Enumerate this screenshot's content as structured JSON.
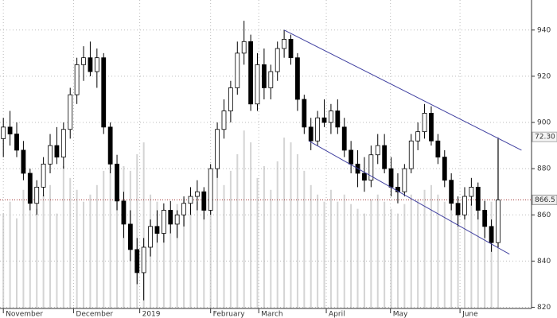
{
  "chart_data": {
    "type": "candlestick",
    "ohlc": [
      [
        893,
        902,
        885,
        898
      ],
      [
        898,
        905,
        890,
        895
      ],
      [
        895,
        900,
        885,
        888
      ],
      [
        888,
        892,
        875,
        878
      ],
      [
        878,
        880,
        862,
        865
      ],
      [
        865,
        875,
        860,
        872
      ],
      [
        872,
        885,
        868,
        882
      ],
      [
        882,
        895,
        878,
        890
      ],
      [
        890,
        898,
        882,
        885
      ],
      [
        885,
        900,
        880,
        897
      ],
      [
        897,
        915,
        893,
        912
      ],
      [
        912,
        928,
        908,
        925
      ],
      [
        925,
        933,
        918,
        928
      ],
      [
        928,
        935,
        920,
        922
      ],
      [
        922,
        932,
        915,
        928
      ],
      [
        928,
        930,
        895,
        898
      ],
      [
        898,
        900,
        878,
        882
      ],
      [
        882,
        886,
        862,
        866
      ],
      [
        866,
        870,
        850,
        856
      ],
      [
        856,
        862,
        840,
        845
      ],
      [
        845,
        850,
        830,
        835
      ],
      [
        835,
        850,
        823,
        846
      ],
      [
        846,
        858,
        842,
        855
      ],
      [
        855,
        862,
        848,
        852
      ],
      [
        852,
        865,
        848,
        862
      ],
      [
        862,
        866,
        852,
        856
      ],
      [
        856,
        862,
        850,
        860
      ],
      [
        860,
        868,
        855,
        865
      ],
      [
        865,
        872,
        860,
        868
      ],
      [
        868,
        875,
        862,
        870
      ],
      [
        870,
        872,
        858,
        862
      ],
      [
        862,
        882,
        860,
        880
      ],
      [
        880,
        900,
        876,
        897
      ],
      [
        897,
        910,
        893,
        905
      ],
      [
        905,
        918,
        900,
        915
      ],
      [
        915,
        935,
        912,
        930
      ],
      [
        930,
        944,
        925,
        935
      ],
      [
        935,
        938,
        905,
        908
      ],
      [
        908,
        930,
        905,
        925
      ],
      [
        925,
        932,
        910,
        915
      ],
      [
        915,
        925,
        910,
        922
      ],
      [
        922,
        935,
        918,
        932
      ],
      [
        932,
        940,
        928,
        936
      ],
      [
        936,
        938,
        925,
        928
      ],
      [
        928,
        930,
        905,
        910
      ],
      [
        910,
        912,
        895,
        898
      ],
      [
        898,
        902,
        888,
        892
      ],
      [
        892,
        905,
        890,
        902
      ],
      [
        902,
        910,
        898,
        900
      ],
      [
        900,
        908,
        895,
        905
      ],
      [
        905,
        910,
        895,
        898
      ],
      [
        898,
        902,
        885,
        888
      ],
      [
        888,
        892,
        878,
        882
      ],
      [
        882,
        888,
        872,
        878
      ],
      [
        878,
        885,
        870,
        875
      ],
      [
        875,
        890,
        872,
        886
      ],
      [
        886,
        895,
        882,
        890
      ],
      [
        890,
        895,
        878,
        880
      ],
      [
        880,
        885,
        868,
        872
      ],
      [
        872,
        878,
        865,
        870
      ],
      [
        870,
        882,
        868,
        880
      ],
      [
        880,
        895,
        878,
        892
      ],
      [
        892,
        900,
        888,
        896
      ],
      [
        896,
        908,
        893,
        904
      ],
      [
        904,
        907,
        890,
        892
      ],
      [
        892,
        895,
        882,
        885
      ],
      [
        885,
        888,
        872,
        875
      ],
      [
        875,
        878,
        862,
        865
      ],
      [
        865,
        868,
        855,
        860
      ],
      [
        860,
        872,
        858,
        868
      ],
      [
        868,
        876,
        864,
        872
      ],
      [
        872,
        874,
        858,
        862
      ],
      [
        862,
        866,
        850,
        855
      ],
      [
        855,
        858,
        844,
        848
      ],
      [
        848,
        893,
        846,
        866.5
      ]
    ],
    "volume": [
      40,
      45,
      38,
      50,
      55,
      42,
      48,
      52,
      40,
      60,
      55,
      50,
      45,
      48,
      52,
      58,
      62,
      55,
      60,
      58,
      65,
      70,
      48,
      45,
      42,
      40,
      44,
      46,
      42,
      45,
      50,
      55,
      60,
      52,
      58,
      65,
      75,
      70,
      55,
      60,
      50,
      62,
      72,
      70,
      65,
      58,
      52,
      48,
      45,
      50,
      45,
      48,
      44,
      42,
      40,
      46,
      48,
      45,
      42,
      40,
      44,
      48,
      46,
      50,
      52,
      48,
      45,
      44,
      42,
      40,
      44,
      42,
      46,
      45,
      72.3
    ],
    "xlim": [
      -0.5,
      79
    ],
    "xticks": [
      {
        "value": 0,
        "label": "November"
      },
      {
        "value": 10.5,
        "label": "December"
      },
      {
        "value": 20.4,
        "label": "2019"
      },
      {
        "value": 31,
        "label": "February"
      },
      {
        "value": 38.2,
        "label": "March"
      },
      {
        "value": 48.3,
        "label": "April"
      },
      {
        "value": 57.9,
        "label": "May"
      },
      {
        "value": 68.3,
        "label": "June"
      }
    ],
    "ylim": [
      819.5,
      953
    ],
    "yticks": [
      820,
      840,
      860,
      880,
      900,
      920,
      940
    ],
    "vlim": [
      0,
      130
    ],
    "grid": true,
    "trendlines": [
      {
        "x": [
          42,
          77.5
        ],
        "y": [
          940,
          888
        ],
        "color": "#4040a0"
      },
      {
        "x": [
          45.7,
          75.7
        ],
        "y": [
          892,
          843
        ],
        "color": "#4040a0"
      }
    ],
    "last_price": 866.5,
    "volume_marker": {
      "value": 72.3,
      "label": "72.30"
    }
  }
}
